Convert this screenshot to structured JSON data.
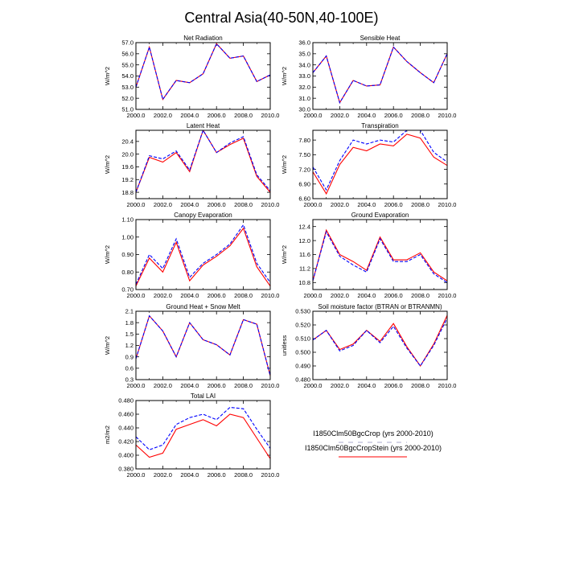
{
  "figure": {
    "title": "Central Asia(40-50N,40-100E)"
  },
  "legend": {
    "entries": [
      {
        "label": "I1850Clm50BgcCrop (yrs 2000-2010)",
        "color": "#0000ff",
        "dash": true
      },
      {
        "label": "I1850Clm50BgcCropStein (yrs 2000-2010)",
        "color": "#ff0000",
        "dash": false
      }
    ]
  },
  "chart_data": [
    {
      "type": "line",
      "title": "Net Radiation",
      "ylabel": "W/m^2",
      "x": [
        2000,
        2001,
        2002,
        2003,
        2004,
        2005,
        2006,
        2007,
        2008,
        2009,
        2010
      ],
      "xticks": [
        "2000.0",
        "2002.0",
        "2004.0",
        "2006.0",
        "2008.0",
        "2010.0"
      ],
      "xlim": [
        2000,
        2010
      ],
      "ylim": [
        51.0,
        57.0
      ],
      "yticks": [
        "51.0",
        "52.0",
        "53.0",
        "54.0",
        "55.0",
        "56.0",
        "57.0"
      ],
      "series": [
        {
          "color": "#0000ff",
          "dashed": true,
          "values": [
            53.0,
            56.6,
            51.9,
            53.6,
            53.4,
            54.2,
            56.9,
            55.6,
            55.8,
            53.5,
            54.1
          ]
        },
        {
          "color": "#ff0000",
          "dashed": false,
          "values": [
            53.0,
            56.6,
            51.9,
            53.6,
            53.4,
            54.2,
            56.9,
            55.6,
            55.8,
            53.5,
            54.1
          ]
        }
      ]
    },
    {
      "type": "line",
      "title": "Sensible Heat",
      "ylabel": "W/m^2",
      "x": [
        2000,
        2001,
        2002,
        2003,
        2004,
        2005,
        2006,
        2007,
        2008,
        2009,
        2010
      ],
      "xticks": [
        "2000.0",
        "2002.0",
        "2004.0",
        "2006.0",
        "2008.0",
        "2010.0"
      ],
      "xlim": [
        2000,
        2010
      ],
      "ylim": [
        30.0,
        36.0
      ],
      "yticks": [
        "30.0",
        "31.0",
        "32.0",
        "33.0",
        "34.0",
        "35.0",
        "36.0"
      ],
      "series": [
        {
          "color": "#0000ff",
          "dashed": true,
          "values": [
            33.3,
            34.8,
            30.6,
            32.6,
            32.1,
            32.2,
            35.6,
            34.3,
            33.3,
            32.4,
            35.0
          ]
        },
        {
          "color": "#ff0000",
          "dashed": false,
          "values": [
            33.3,
            34.8,
            30.6,
            32.6,
            32.1,
            32.2,
            35.6,
            34.3,
            33.3,
            32.4,
            35.0
          ]
        }
      ]
    },
    {
      "type": "line",
      "title": "Latent Heat",
      "ylabel": "W/m^2",
      "x": [
        2000,
        2001,
        2002,
        2003,
        2004,
        2005,
        2006,
        2007,
        2008,
        2009,
        2010
      ],
      "xticks": [
        "2000.0",
        "2002.0",
        "2004.0",
        "2006.0",
        "2008.0",
        "2010.0"
      ],
      "xlim": [
        2000,
        2010
      ],
      "ylim": [
        18.6,
        20.75
      ],
      "yticks": [
        "18.8",
        "19.2",
        "19.6",
        "20.0",
        "20.4"
      ],
      "series": [
        {
          "color": "#0000ff",
          "dashed": true,
          "values": [
            18.8,
            19.95,
            19.85,
            20.1,
            19.5,
            20.75,
            20.05,
            20.35,
            20.55,
            19.35,
            18.85
          ]
        },
        {
          "color": "#ff0000",
          "dashed": false,
          "values": [
            18.8,
            19.9,
            19.75,
            20.05,
            19.45,
            20.75,
            20.05,
            20.3,
            20.5,
            19.3,
            18.8
          ]
        }
      ]
    },
    {
      "type": "line",
      "title": "Transpiration",
      "ylabel": "W/m^2",
      "x": [
        2000,
        2001,
        2002,
        2003,
        2004,
        2005,
        2006,
        2007,
        2008,
        2009,
        2010
      ],
      "xticks": [
        "2000.0",
        "2002.0",
        "2004.0",
        "2006.0",
        "2008.0",
        "2010.0"
      ],
      "xlim": [
        2000,
        2010
      ],
      "ylim": [
        6.6,
        8.0
      ],
      "yticks": [
        "6.60",
        "6.90",
        "7.20",
        "7.50",
        "7.80"
      ],
      "series": [
        {
          "color": "#0000ff",
          "dashed": true,
          "values": [
            7.25,
            6.78,
            7.38,
            7.8,
            7.72,
            7.8,
            7.76,
            8.0,
            8.0,
            7.55,
            7.35
          ]
        },
        {
          "color": "#ff0000",
          "dashed": false,
          "values": [
            7.15,
            6.7,
            7.3,
            7.65,
            7.58,
            7.72,
            7.68,
            7.92,
            7.84,
            7.45,
            7.28
          ]
        }
      ]
    },
    {
      "type": "line",
      "title": "Canopy Evaporation",
      "ylabel": "W/m^2",
      "x": [
        2000,
        2001,
        2002,
        2003,
        2004,
        2005,
        2006,
        2007,
        2008,
        2009,
        2010
      ],
      "xticks": [
        "2000.0",
        "2002.0",
        "2004.0",
        "2006.0",
        "2008.0",
        "2010.0"
      ],
      "xlim": [
        2000,
        2010
      ],
      "ylim": [
        0.7,
        1.1
      ],
      "yticks": [
        "0.70",
        "0.80",
        "0.90",
        "1.00",
        "1.10"
      ],
      "series": [
        {
          "color": "#0000ff",
          "dashed": true,
          "values": [
            0.73,
            0.9,
            0.82,
            0.99,
            0.77,
            0.85,
            0.9,
            0.96,
            1.07,
            0.85,
            0.74
          ]
        },
        {
          "color": "#ff0000",
          "dashed": false,
          "values": [
            0.72,
            0.88,
            0.8,
            0.97,
            0.75,
            0.84,
            0.89,
            0.95,
            1.05,
            0.83,
            0.72
          ]
        }
      ]
    },
    {
      "type": "line",
      "title": "Ground Evaporation",
      "ylabel": "W/m^2",
      "x": [
        2000,
        2001,
        2002,
        2003,
        2004,
        2005,
        2006,
        2007,
        2008,
        2009,
        2010
      ],
      "xticks": [
        "2000.0",
        "2002.0",
        "2004.0",
        "2006.0",
        "2008.0",
        "2010.0"
      ],
      "xlim": [
        2000,
        2010
      ],
      "ylim": [
        10.6,
        12.6
      ],
      "yticks": [
        "10.8",
        "11.2",
        "11.6",
        "12.0",
        "12.4"
      ],
      "series": [
        {
          "color": "#0000ff",
          "dashed": true,
          "values": [
            10.85,
            12.25,
            11.55,
            11.3,
            11.1,
            12.05,
            11.4,
            11.4,
            11.6,
            11.05,
            10.8
          ]
        },
        {
          "color": "#ff0000",
          "dashed": false,
          "values": [
            10.85,
            12.3,
            11.6,
            11.4,
            11.15,
            12.1,
            11.45,
            11.45,
            11.65,
            11.1,
            10.85
          ]
        }
      ]
    },
    {
      "type": "line",
      "title": "Ground Heat + Snow Melt",
      "ylabel": "W/m^2",
      "x": [
        2000,
        2001,
        2002,
        2003,
        2004,
        2005,
        2006,
        2007,
        2008,
        2009,
        2010
      ],
      "xticks": [
        "2000.0",
        "2002.0",
        "2004.0",
        "2006.0",
        "2008.0",
        "2010.0"
      ],
      "xlim": [
        2000,
        2010
      ],
      "ylim": [
        0.3,
        2.1
      ],
      "yticks": [
        "0.3",
        "0.6",
        "0.9",
        "1.2",
        "1.5",
        "1.8",
        "2.1"
      ],
      "series": [
        {
          "color": "#0000ff",
          "dashed": true,
          "values": [
            0.85,
            1.98,
            1.58,
            0.9,
            1.8,
            1.35,
            1.22,
            0.95,
            1.88,
            1.76,
            0.4
          ]
        },
        {
          "color": "#ff0000",
          "dashed": false,
          "values": [
            0.85,
            1.98,
            1.58,
            0.9,
            1.8,
            1.35,
            1.22,
            0.95,
            1.88,
            1.76,
            0.4
          ]
        }
      ]
    },
    {
      "type": "line",
      "title": "Soil moisture factor (BTRAN or BTRANMN)",
      "ylabel": "unitless",
      "x": [
        2000,
        2001,
        2002,
        2003,
        2004,
        2005,
        2006,
        2007,
        2008,
        2009,
        2010
      ],
      "xticks": [
        "2000.0",
        "2002.0",
        "2004.0",
        "2006.0",
        "2008.0",
        "2010.0"
      ],
      "xlim": [
        2000,
        2010
      ],
      "ylim": [
        0.48,
        0.53
      ],
      "yticks": [
        "0.480",
        "0.490",
        "0.500",
        "0.510",
        "0.520",
        "0.530"
      ],
      "series": [
        {
          "color": "#0000ff",
          "dashed": true,
          "values": [
            0.509,
            0.516,
            0.501,
            0.505,
            0.516,
            0.507,
            0.519,
            0.503,
            0.49,
            0.505,
            0.525
          ]
        },
        {
          "color": "#ff0000",
          "dashed": false,
          "values": [
            0.509,
            0.516,
            0.502,
            0.506,
            0.516,
            0.508,
            0.521,
            0.504,
            0.49,
            0.506,
            0.527
          ]
        }
      ]
    },
    {
      "type": "line",
      "title": "Total LAI",
      "ylabel": "m2/m2",
      "x": [
        2000,
        2001,
        2002,
        2003,
        2004,
        2005,
        2006,
        2007,
        2008,
        2009,
        2010
      ],
      "xticks": [
        "2000.0",
        "2002.0",
        "2004.0",
        "2006.0",
        "2008.0",
        "2010.0"
      ],
      "xlim": [
        2000,
        2010
      ],
      "ylim": [
        0.38,
        0.48
      ],
      "yticks": [
        "0.380",
        "0.400",
        "0.420",
        "0.440",
        "0.460",
        "0.480"
      ],
      "series": [
        {
          "color": "#0000ff",
          "dashed": true,
          "values": [
            0.427,
            0.408,
            0.415,
            0.445,
            0.455,
            0.46,
            0.452,
            0.47,
            0.468,
            0.438,
            0.41
          ]
        },
        {
          "color": "#ff0000",
          "dashed": false,
          "values": [
            0.415,
            0.397,
            0.403,
            0.438,
            0.445,
            0.452,
            0.443,
            0.46,
            0.455,
            0.425,
            0.395
          ]
        }
      ]
    }
  ]
}
